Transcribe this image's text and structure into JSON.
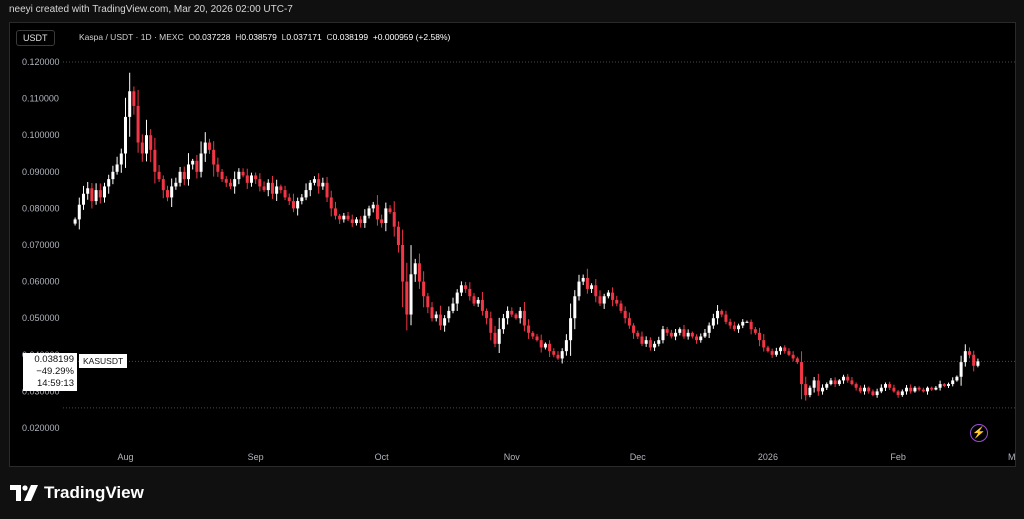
{
  "header_text": "neeyi created with TradingView.com, Mar 20, 2026 02:00 UTC-7",
  "currency_badge": "USDT",
  "legend": {
    "symbol": "Kaspa / USDT · 1D · MEXC",
    "o_label": "O",
    "o_value": "0.037228",
    "h_label": "H",
    "h_value": "0.038579",
    "l_label": "L",
    "l_value": "0.037171",
    "c_label": "C",
    "c_value": "0.038199",
    "change": "+0.000959 (+2.58%)"
  },
  "price_label": {
    "price": "0.038199",
    "change_pct": "−49.29%",
    "countdown": "14:59:13",
    "symbol": "KASUSDT"
  },
  "logo_text": "TradingView",
  "colors": {
    "up": "#ffffff",
    "down": "#f23645",
    "grid": "#4a4a4a",
    "text": "#b2b5be"
  },
  "chart_data": {
    "type": "candlestick",
    "title": "Kaspa / USDT · 1D · MEXC",
    "ylim": [
      0.015,
      0.123
    ],
    "y_ticks": [
      "0.120000",
      "0.110000",
      "0.100000",
      "0.090000",
      "0.080000",
      "0.070000",
      "0.060000",
      "0.050000",
      "0.040000",
      "0.030000",
      "0.020000"
    ],
    "x_ticks": [
      "Aug",
      "Sep",
      "Oct",
      "Nov",
      "Dec",
      "2026",
      "Feb",
      "Mar"
    ],
    "x_tick_day_index": [
      12,
      43,
      73,
      104,
      134,
      165,
      196,
      224
    ],
    "start_date": "2025-07-20",
    "dotted_levels": [
      0.12,
      0.038199,
      0.0255
    ],
    "close_series": [
      0.077,
      0.081,
      0.084,
      0.0855,
      0.082,
      0.085,
      0.083,
      0.086,
      0.088,
      0.09,
      0.092,
      0.095,
      0.105,
      0.112,
      0.108,
      0.098,
      0.095,
      0.1,
      0.096,
      0.09,
      0.088,
      0.085,
      0.083,
      0.086,
      0.087,
      0.09,
      0.088,
      0.092,
      0.093,
      0.09,
      0.095,
      0.098,
      0.096,
      0.092,
      0.09,
      0.088,
      0.087,
      0.086,
      0.088,
      0.09,
      0.089,
      0.087,
      0.089,
      0.088,
      0.086,
      0.085,
      0.087,
      0.084,
      0.086,
      0.085,
      0.083,
      0.082,
      0.08,
      0.082,
      0.083,
      0.085,
      0.087,
      0.088,
      0.086,
      0.087,
      0.083,
      0.08,
      0.078,
      0.077,
      0.078,
      0.077,
      0.076,
      0.077,
      0.076,
      0.078,
      0.08,
      0.081,
      0.077,
      0.076,
      0.08,
      0.079,
      0.075,
      0.07,
      0.06,
      0.051,
      0.062,
      0.065,
      0.06,
      0.056,
      0.053,
      0.05,
      0.051,
      0.048,
      0.05,
      0.052,
      0.054,
      0.057,
      0.059,
      0.058,
      0.056,
      0.054,
      0.055,
      0.052,
      0.05,
      0.046,
      0.043,
      0.047,
      0.05,
      0.052,
      0.051,
      0.05,
      0.052,
      0.048,
      0.046,
      0.045,
      0.044,
      0.042,
      0.043,
      0.041,
      0.04,
      0.039,
      0.041,
      0.044,
      0.05,
      0.056,
      0.06,
      0.061,
      0.058,
      0.059,
      0.056,
      0.054,
      0.056,
      0.057,
      0.055,
      0.054,
      0.052,
      0.05,
      0.048,
      0.046,
      0.045,
      0.043,
      0.044,
      0.042,
      0.043,
      0.044,
      0.047,
      0.046,
      0.045,
      0.046,
      0.047,
      0.045,
      0.046,
      0.045,
      0.044,
      0.045,
      0.046,
      0.048,
      0.05,
      0.052,
      0.051,
      0.049,
      0.048,
      0.047,
      0.048,
      0.049,
      0.049,
      0.047,
      0.046,
      0.044,
      0.042,
      0.041,
      0.04,
      0.041,
      0.042,
      0.041,
      0.04,
      0.039,
      0.038,
      0.032,
      0.029,
      0.031,
      0.033,
      0.03,
      0.031,
      0.032,
      0.033,
      0.032,
      0.033,
      0.034,
      0.033,
      0.032,
      0.031,
      0.03,
      0.031,
      0.03,
      0.029,
      0.03,
      0.031,
      0.032,
      0.031,
      0.03,
      0.029,
      0.03,
      0.031,
      0.03,
      0.031,
      0.0305,
      0.03,
      0.031,
      0.0305,
      0.031,
      0.032,
      0.0315,
      0.032,
      0.033,
      0.034,
      0.038,
      0.041,
      0.04,
      0.037,
      0.0382
    ]
  }
}
